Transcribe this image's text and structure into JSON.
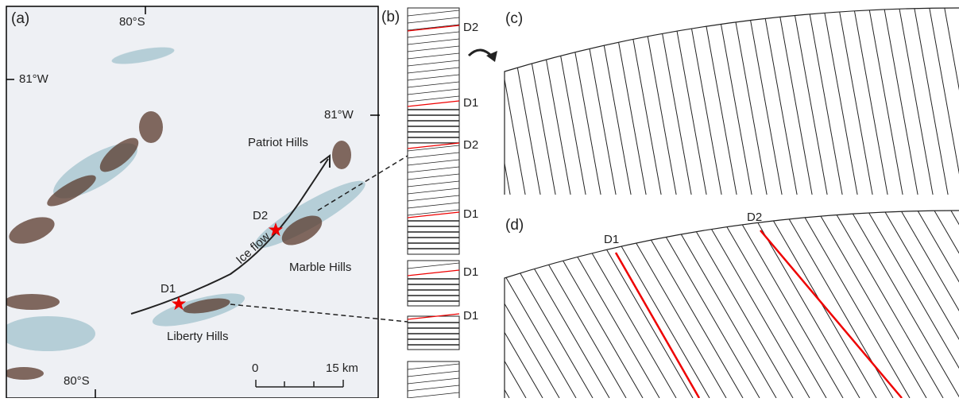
{
  "panel_a": {
    "label": "(a)",
    "lat_top": "80°S",
    "lon_left": "81°W",
    "lon_right": "81°W",
    "lat_bottom": "80°S",
    "places": [
      "Patriot Hills",
      "Marble Hills",
      "Liberty Hills"
    ],
    "arrow_label": "Ice flow",
    "sites": [
      "D2",
      "D1"
    ],
    "scale": {
      "start": "0",
      "end": "15 km"
    }
  },
  "panel_b": {
    "label": "(b)",
    "columns": [
      {
        "labels": [
          "D2",
          "D1"
        ]
      },
      {
        "labels": [
          "D2",
          "D1"
        ]
      },
      {
        "labels": [
          "D1"
        ]
      },
      {
        "labels": [
          "D1"
        ]
      }
    ]
  },
  "panel_c": {
    "label": "(c)"
  },
  "panel_d": {
    "label": "(d)",
    "markers": [
      "D1",
      "D2"
    ]
  }
}
